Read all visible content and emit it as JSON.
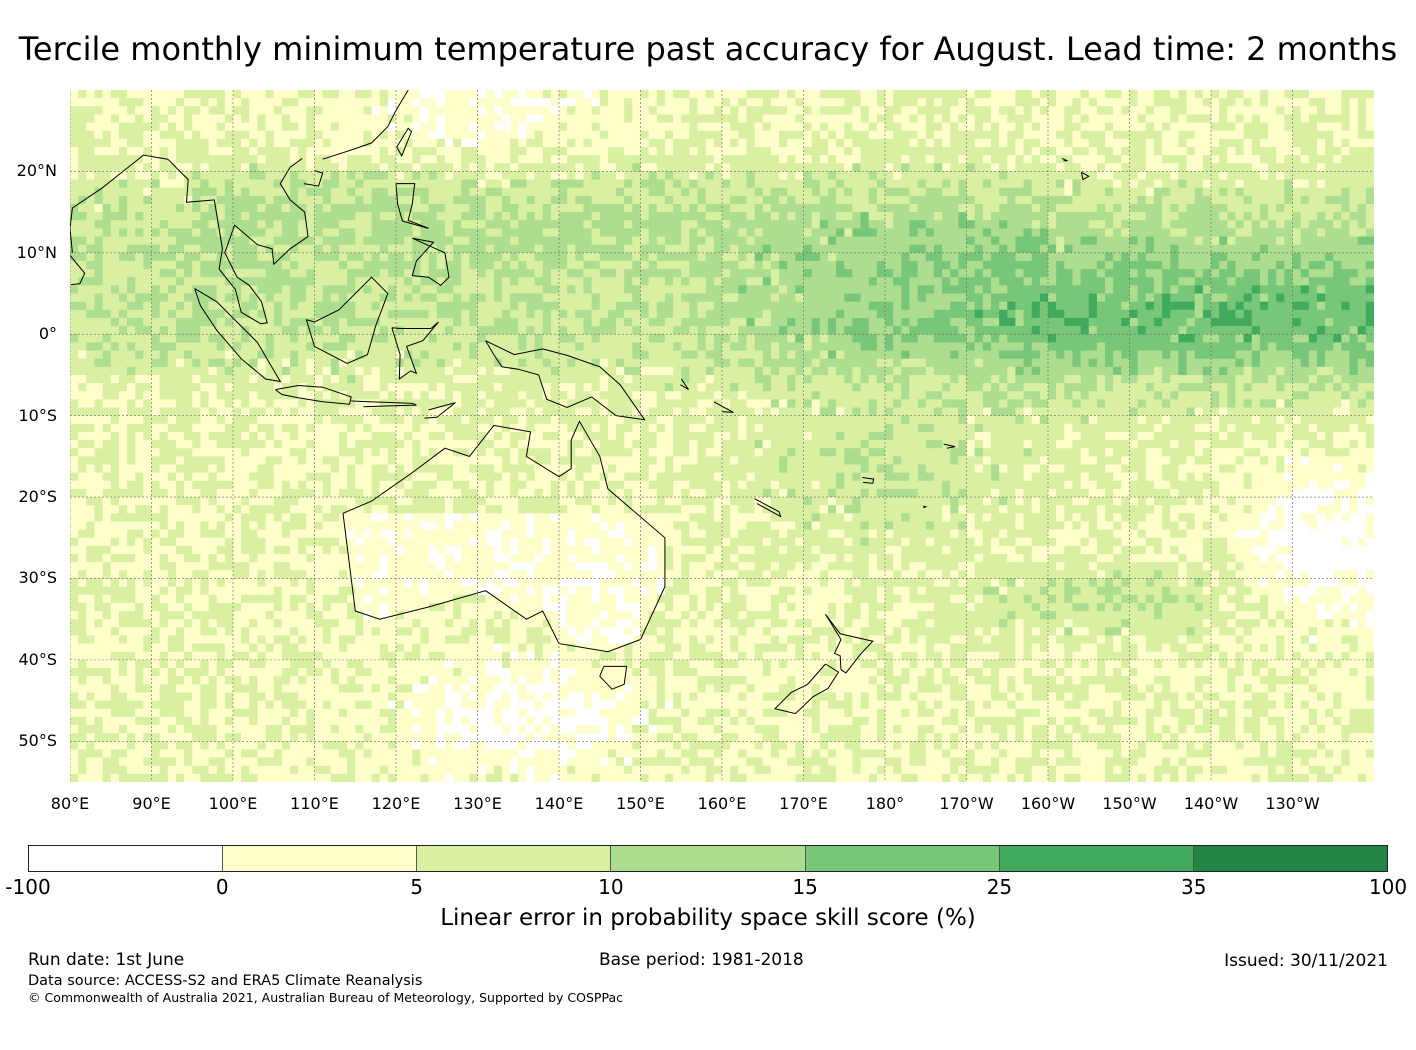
{
  "title": "Tercile monthly minimum temperature past accuracy for August. Lead time: 2 months",
  "map": {
    "lat_labels": [
      "20°N",
      "10°N",
      "0°",
      "10°S",
      "20°S",
      "30°S",
      "40°S",
      "50°S"
    ],
    "lat_values": [
      20,
      10,
      0,
      -10,
      -20,
      -30,
      -40,
      -50
    ],
    "lon_labels": [
      "80°E",
      "90°E",
      "100°E",
      "110°E",
      "120°E",
      "130°E",
      "140°E",
      "150°E",
      "160°E",
      "170°E",
      "180°",
      "170°W",
      "160°W",
      "150°W",
      "140°W",
      "130°W"
    ],
    "lon_values": [
      80,
      90,
      100,
      110,
      120,
      130,
      140,
      150,
      160,
      170,
      180,
      190,
      200,
      210,
      220,
      230
    ],
    "lon_range": [
      80,
      240
    ],
    "lat_range": [
      -55,
      30
    ]
  },
  "colorbar": {
    "colors": [
      "#ffffff",
      "#ffffcc",
      "#d9f0a3",
      "#addd8e",
      "#78c679",
      "#41ab5d",
      "#238443"
    ],
    "ticks": [
      "-100",
      "0",
      "5",
      "10",
      "15",
      "25",
      "35",
      "100"
    ],
    "label": "Linear error in probability space skill score (%)"
  },
  "footer": {
    "run_date": "Run date: 1st June",
    "base_period": "Base period: 1981-2018",
    "issued": "Issued: 30/11/2021",
    "data_source": "Data source: ACCESS-S2 and ERA5 Climate Reanalysis",
    "copyright": "© Commonwealth of Australia 2021, Australian Bureau of Meteorology, Supported by COSPPac"
  }
}
